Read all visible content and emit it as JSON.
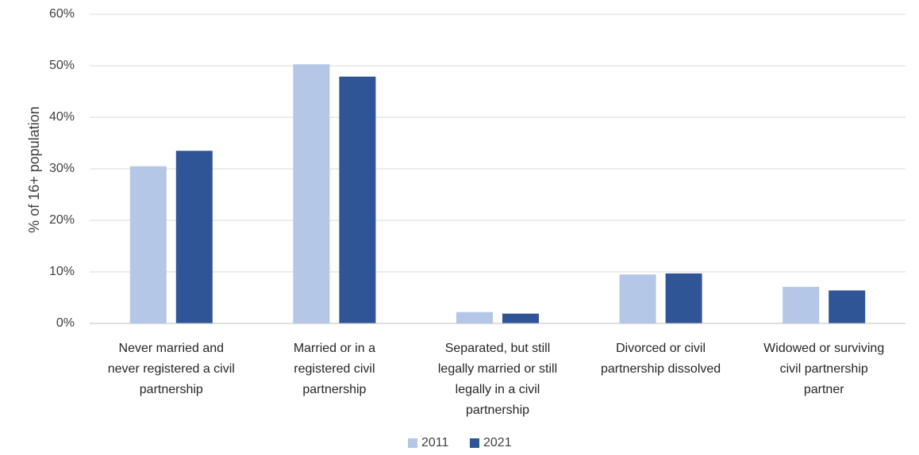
{
  "chart_data": {
    "type": "bar",
    "title": "",
    "xlabel": "",
    "ylabel": "% of 16+ population",
    "ylim": [
      0,
      60
    ],
    "yticks": [
      "0%",
      "10%",
      "20%",
      "30%",
      "40%",
      "50%",
      "60%"
    ],
    "grid": true,
    "legend_position": "bottom",
    "categories": [
      [
        "Never married and",
        "never registered a civil",
        "partnership"
      ],
      [
        "Married or in a",
        "registered civil",
        "partnership"
      ],
      [
        "Separated, but still",
        "legally married or still",
        "legally in a civil",
        "partnership"
      ],
      [
        "Divorced or civil",
        "partnership dissolved"
      ],
      [
        "Widowed or surviving",
        "civil partnership",
        "partner"
      ]
    ],
    "series": [
      {
        "name": "2011",
        "color": "#b4c7e7",
        "values": [
          30.5,
          50.3,
          2.2,
          9.5,
          7.1
        ]
      },
      {
        "name": "2021",
        "color": "#2f5597",
        "values": [
          33.5,
          47.9,
          1.9,
          9.7,
          6.4
        ]
      }
    ]
  }
}
